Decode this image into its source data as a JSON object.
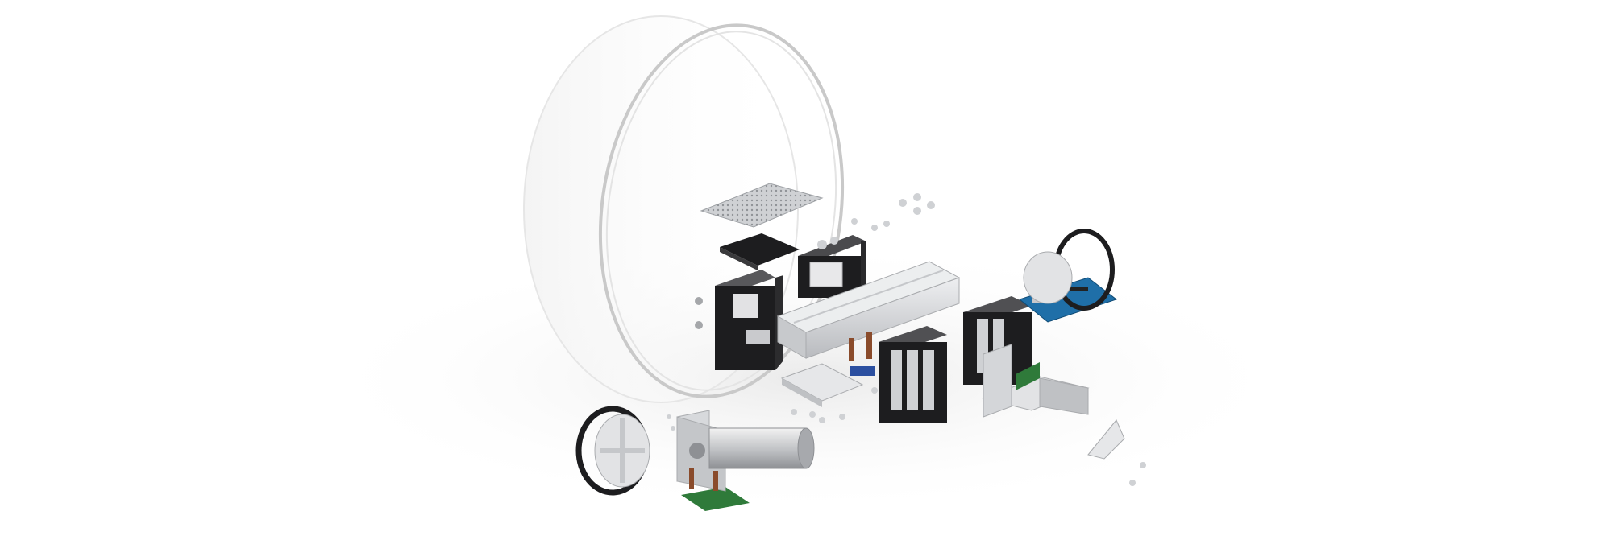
{
  "figure": {
    "kind": "exploded-view render",
    "text": []
  },
  "colors": {
    "background": "#ffffff",
    "shadow": "#ececec",
    "dome_edge": "#c9c9c9",
    "aluminum": "#d9dadc",
    "aluminum_dark": "#a9abae",
    "black_part": "#1d1d1f",
    "pcb_blue": "#1f6fa8",
    "pcb_green": "#2f7a3a",
    "copper": "#8a4b2b",
    "foam_blue": "#2b4fa0"
  },
  "components": [
    {
      "name": "clear-dome"
    },
    {
      "name": "perforated-board"
    },
    {
      "name": "black-pad"
    },
    {
      "name": "servo-top"
    },
    {
      "name": "servo-left"
    },
    {
      "name": "aluminum-channel"
    },
    {
      "name": "base-plate"
    },
    {
      "name": "spacer-standoffs"
    },
    {
      "name": "battery-pack-front"
    },
    {
      "name": "battery-pack-rear"
    },
    {
      "name": "arduino-board"
    },
    {
      "name": "drive-wheel-right"
    },
    {
      "name": "drive-wheel-left"
    },
    {
      "name": "gear-motor"
    },
    {
      "name": "motor-bracket"
    },
    {
      "name": "sensor-pcb"
    },
    {
      "name": "caster-bracket"
    },
    {
      "name": "wedge-bracket"
    },
    {
      "name": "screws"
    }
  ]
}
